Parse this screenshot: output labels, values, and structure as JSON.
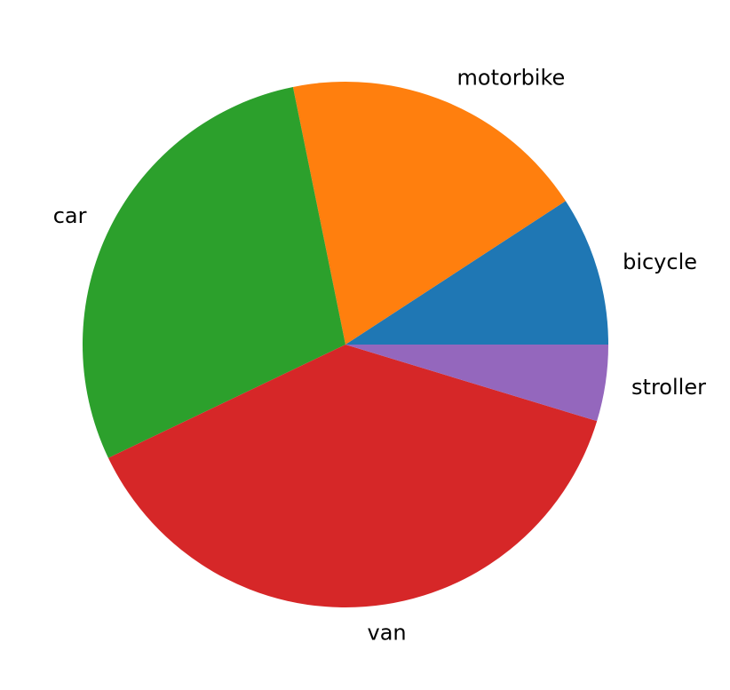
{
  "chart_data": {
    "type": "pie",
    "title": "",
    "start_angle_deg": 0,
    "direction": "counterclockwise",
    "slices": [
      {
        "label": "bicycle",
        "value": 9.2,
        "color": "#1f77b4"
      },
      {
        "label": "motorbike",
        "value": 19.0,
        "color": "#ff7f0e"
      },
      {
        "label": "car",
        "value": 28.9,
        "color": "#2ca02c"
      },
      {
        "label": "van",
        "value": 38.2,
        "color": "#d62728"
      },
      {
        "label": "stroller",
        "value": 4.7,
        "color": "#9467bd"
      }
    ]
  }
}
